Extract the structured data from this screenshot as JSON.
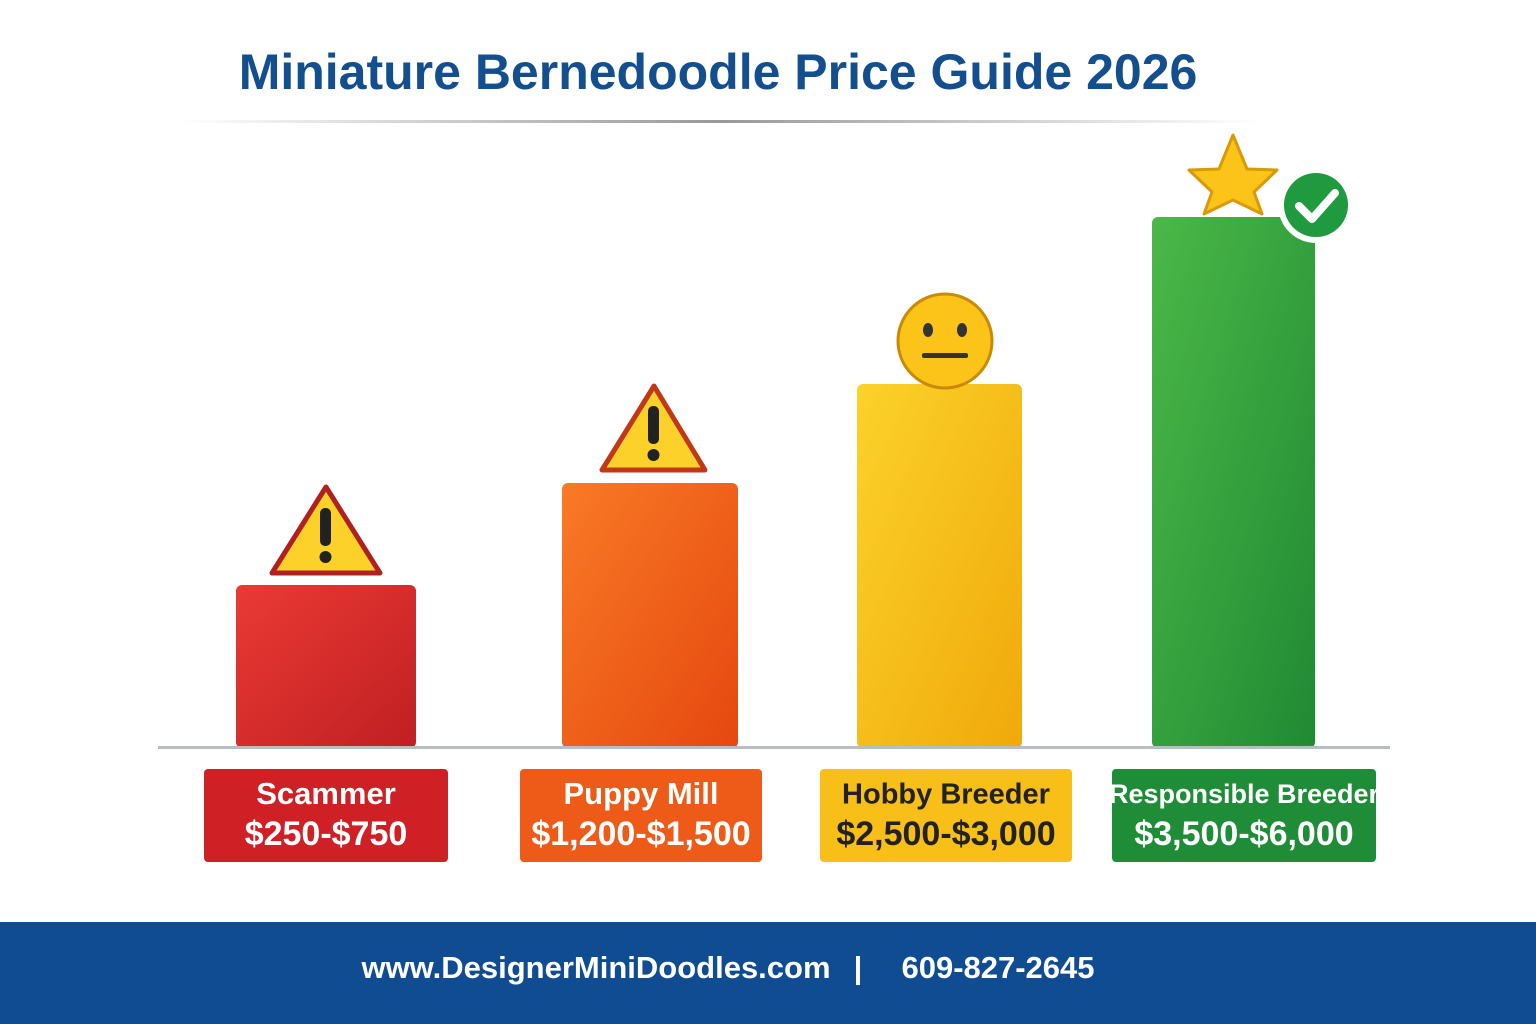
{
  "title": "Miniature Bernedoodle Price Guide 2026",
  "tiers": [
    {
      "name": "Scammer",
      "price": "$250-$750"
    },
    {
      "name": "Puppy Mill",
      "price": "$1,200-$1,500"
    },
    {
      "name": "Hobby Breeder",
      "price": "$2,500-$3,000"
    },
    {
      "name": "Responsible Breeder",
      "price": "$3,500-$6,000"
    }
  ],
  "footer": {
    "website": "www.DesignerMiniDoodles.com",
    "separator": "|",
    "phone": "609-827-2645"
  }
}
